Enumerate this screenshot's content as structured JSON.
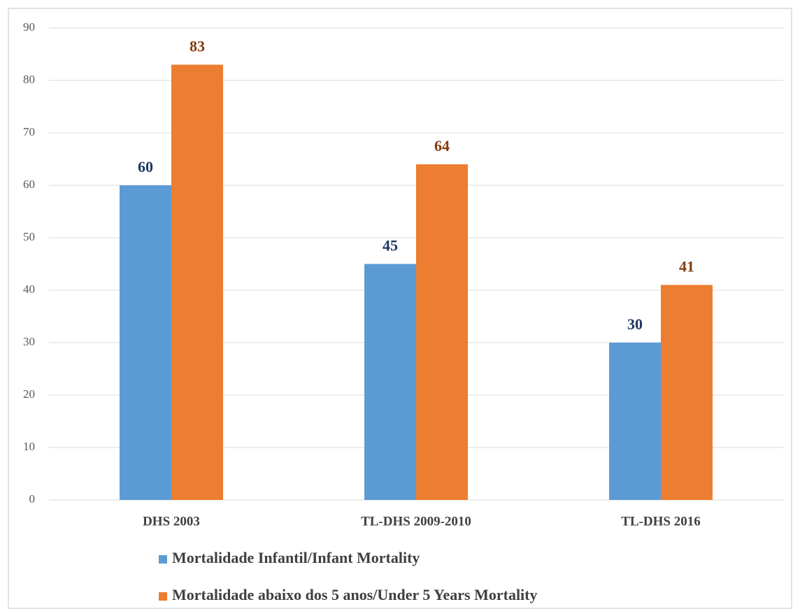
{
  "chart_data": {
    "type": "bar",
    "categories": [
      "DHS 2003",
      "TL-DHS 2009-2010",
      "TL-DHS 2016"
    ],
    "series": [
      {
        "name": "Mortalidade Infantil/Infant Mortality",
        "color": "#5b9bd5",
        "label_color": "#203864",
        "values": [
          60,
          45,
          30
        ]
      },
      {
        "name": "Mortalidade abaixo dos 5 anos/Under 5 Years Mortality",
        "color": "#ed7d31",
        "label_color": "#843c0c",
        "values": [
          83,
          64,
          41
        ]
      }
    ],
    "ylim": [
      0,
      90
    ],
    "yticks": [
      0,
      10,
      20,
      30,
      40,
      50,
      60,
      70,
      80,
      90
    ],
    "grid": true,
    "legend": "bottom"
  }
}
